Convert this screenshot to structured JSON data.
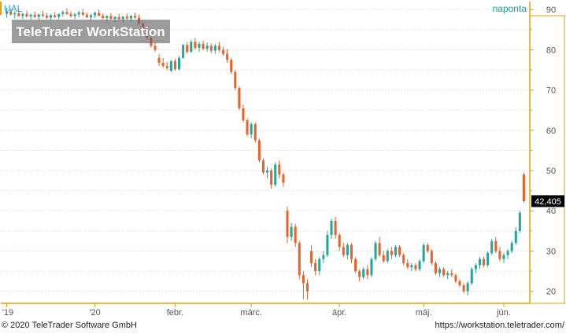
{
  "symbol": "UAL",
  "interval_label": "naponta",
  "watermark": "TeleTrader WorkStation",
  "last_price_label": "42,405",
  "footer": {
    "copyright": "© 2020 TeleTrader Software GmbH",
    "url": "https://workstation.teletrader.com/"
  },
  "colors": {
    "up": "#26a69a",
    "down": "#e8622a",
    "frame": "#e8a000",
    "grid": "#d8d8d8",
    "price_tag_bg": "#000000",
    "price_tag_text": "#ffffff",
    "symbol_text": "#2e9fd8",
    "interval_text": "#1aa39a"
  },
  "chart_data": {
    "type": "candlestick",
    "ylim": [
      17,
      92
    ],
    "y_ticks": [
      20,
      30,
      40,
      50,
      60,
      70,
      80,
      90
    ],
    "x_ticks": [
      {
        "label": "'19",
        "pos": 0
      },
      {
        "label": "'20",
        "pos": 22
      },
      {
        "label": "febr.",
        "pos": 42
      },
      {
        "label": "márc.",
        "pos": 61
      },
      {
        "label": "ápr.",
        "pos": 83
      },
      {
        "label": "máj.",
        "pos": 104
      },
      {
        "label": "jún.",
        "pos": 124
      }
    ],
    "candles": [
      [
        89.0,
        90.5,
        88.0,
        89.5
      ],
      [
        89.5,
        90.2,
        88.5,
        88.8
      ],
      [
        88.8,
        89.6,
        87.8,
        89.1
      ],
      [
        89.1,
        90.0,
        88.3,
        88.4
      ],
      [
        88.4,
        89.3,
        87.6,
        88.9
      ],
      [
        88.9,
        89.8,
        88.0,
        88.3
      ],
      [
        88.3,
        89.0,
        87.5,
        88.7
      ],
      [
        88.7,
        89.5,
        87.9,
        88.2
      ],
      [
        88.2,
        89.0,
        87.4,
        88.8
      ],
      [
        88.8,
        89.7,
        88.1,
        88.5
      ],
      [
        88.5,
        89.2,
        87.7,
        88.0
      ],
      [
        88.0,
        88.9,
        87.3,
        88.6
      ],
      [
        88.6,
        89.4,
        87.9,
        88.2
      ],
      [
        88.2,
        89.0,
        87.6,
        88.9
      ],
      [
        88.9,
        89.8,
        88.3,
        89.4
      ],
      [
        89.4,
        90.3,
        88.7,
        88.9
      ],
      [
        88.9,
        89.6,
        88.0,
        88.4
      ],
      [
        88.4,
        89.2,
        87.6,
        88.8
      ],
      [
        88.8,
        89.7,
        88.1,
        89.3
      ],
      [
        89.3,
        90.2,
        88.5,
        88.7
      ],
      [
        88.7,
        89.3,
        87.9,
        88.1
      ],
      [
        88.1,
        88.9,
        87.2,
        88.6
      ],
      [
        88.6,
        89.5,
        87.9,
        89.2
      ],
      [
        89.2,
        90.0,
        88.3,
        88.5
      ],
      [
        88.5,
        89.1,
        87.6,
        87.9
      ],
      [
        87.9,
        88.6,
        87.0,
        88.4
      ],
      [
        88.4,
        89.1,
        87.5,
        87.7
      ],
      [
        87.7,
        88.4,
        86.9,
        88.2
      ],
      [
        88.2,
        89.0,
        87.4,
        87.6
      ],
      [
        87.6,
        88.3,
        86.8,
        88.3
      ],
      [
        88.3,
        89.0,
        87.5,
        87.8
      ],
      [
        87.8,
        88.6,
        87.0,
        88.5
      ],
      [
        88.5,
        89.3,
        87.7,
        88.0
      ],
      [
        88.0,
        88.8,
        86.2,
        86.5
      ],
      [
        86.5,
        87.2,
        84.0,
        84.5
      ],
      [
        84.5,
        85.6,
        82.5,
        83.0
      ],
      [
        83.0,
        83.6,
        80.5,
        81.0
      ],
      [
        81.0,
        81.8,
        79.5,
        80.0
      ],
      [
        78.0,
        79.0,
        76.0,
        76.8
      ],
      [
        76.8,
        78.0,
        75.5,
        76.0
      ],
      [
        76.0,
        77.0,
        75.0,
        75.5
      ],
      [
        74.8,
        77.5,
        74.5,
        77.2
      ],
      [
        77.2,
        77.8,
        74.8,
        75.2
      ],
      [
        75.2,
        78.5,
        74.9,
        78.0
      ],
      [
        78.0,
        81.5,
        77.8,
        81.2
      ],
      [
        81.2,
        82.0,
        79.0,
        79.5
      ],
      [
        79.5,
        82.5,
        79.2,
        82.0
      ],
      [
        82.0,
        83.0,
        80.0,
        80.5
      ],
      [
        80.5,
        82.0,
        79.5,
        81.5
      ],
      [
        81.5,
        82.3,
        79.8,
        80.3
      ],
      [
        80.3,
        81.8,
        79.5,
        81.0
      ],
      [
        81.0,
        81.6,
        79.2,
        79.8
      ],
      [
        79.8,
        81.5,
        79.0,
        81.0
      ],
      [
        81.0,
        82.0,
        79.5,
        80.0
      ],
      [
        80.0,
        80.8,
        78.5,
        79.0
      ],
      [
        79.0,
        80.2,
        76.8,
        77.5
      ],
      [
        77.5,
        78.0,
        74.0,
        74.5
      ],
      [
        74.5,
        75.0,
        70.0,
        70.5
      ],
      [
        70.5,
        71.0,
        65.0,
        65.5
      ],
      [
        65.5,
        66.5,
        62.0,
        62.5
      ],
      [
        62.5,
        63.0,
        58.5,
        59.0
      ],
      [
        59.0,
        62.0,
        58.0,
        61.5
      ],
      [
        61.5,
        62.0,
        57.0,
        57.5
      ],
      [
        57.5,
        58.0,
        52.0,
        52.5
      ],
      [
        52.5,
        53.0,
        49.0,
        49.5
      ],
      [
        49.5,
        51.0,
        48.0,
        50.0
      ],
      [
        50.0,
        50.5,
        45.5,
        46.5
      ],
      [
        46.5,
        52.0,
        46.0,
        51.5
      ],
      [
        51.5,
        52.5,
        48.0,
        49.0
      ],
      [
        49.0,
        49.5,
        46.0,
        47.0
      ],
      [
        40.0,
        41.0,
        32.0,
        33.5
      ],
      [
        33.5,
        37.0,
        32.5,
        36.0
      ],
      [
        36.0,
        36.8,
        31.0,
        32.0
      ],
      [
        32.0,
        32.5,
        23.0,
        24.0
      ],
      [
        24.0,
        25.0,
        18.0,
        22.0
      ],
      [
        22.0,
        23.0,
        18.0,
        20.0
      ],
      [
        30.0,
        31.5,
        26.0,
        27.0
      ],
      [
        27.0,
        28.0,
        24.0,
        25.0
      ],
      [
        25.0,
        28.5,
        24.0,
        28.0
      ],
      [
        28.0,
        30.0,
        27.0,
        29.0
      ],
      [
        29.0,
        35.0,
        28.5,
        34.0
      ],
      [
        34.0,
        38.0,
        33.0,
        37.5
      ],
      [
        37.5,
        38.5,
        33.0,
        34.0
      ],
      [
        34.0,
        34.5,
        30.0,
        31.0
      ],
      [
        31.0,
        32.0,
        28.5,
        29.0
      ],
      [
        29.0,
        32.0,
        28.0,
        31.5
      ],
      [
        31.5,
        32.0,
        27.0,
        28.0
      ],
      [
        28.0,
        28.5,
        24.5,
        25.0
      ],
      [
        25.0,
        25.5,
        22.5,
        23.5
      ],
      [
        23.5,
        26.0,
        23.0,
        25.5
      ],
      [
        25.5,
        26.5,
        23.0,
        24.0
      ],
      [
        24.0,
        28.5,
        23.5,
        28.0
      ],
      [
        28.0,
        32.5,
        27.5,
        32.0
      ],
      [
        32.0,
        33.5,
        28.5,
        29.0
      ],
      [
        29.0,
        30.0,
        27.0,
        27.5
      ],
      [
        27.5,
        30.5,
        27.0,
        30.0
      ],
      [
        30.0,
        31.0,
        28.0,
        29.0
      ],
      [
        29.0,
        31.5,
        28.5,
        31.0
      ],
      [
        31.0,
        31.5,
        28.5,
        29.0
      ],
      [
        29.0,
        29.5,
        26.5,
        27.0
      ],
      [
        27.0,
        28.0,
        25.5,
        26.0
      ],
      [
        26.0,
        27.0,
        25.0,
        26.5
      ],
      [
        26.5,
        27.0,
        25.0,
        25.5
      ],
      [
        25.5,
        28.0,
        25.0,
        27.5
      ],
      [
        27.5,
        32.0,
        27.0,
        31.5
      ],
      [
        31.5,
        32.0,
        29.5,
        30.0
      ],
      [
        30.0,
        30.5,
        26.5,
        27.0
      ],
      [
        27.0,
        27.5,
        24.0,
        24.5
      ],
      [
        24.5,
        26.0,
        23.5,
        25.5
      ],
      [
        25.5,
        26.0,
        23.5,
        24.0
      ],
      [
        24.0,
        25.0,
        23.0,
        24.5
      ],
      [
        24.5,
        25.5,
        23.5,
        24.0
      ],
      [
        24.0,
        24.5,
        22.0,
        22.5
      ],
      [
        22.5,
        23.0,
        21.0,
        21.5
      ],
      [
        21.5,
        22.0,
        19.5,
        20.0
      ],
      [
        20.0,
        22.5,
        19.0,
        22.0
      ],
      [
        22.0,
        26.0,
        21.5,
        25.5
      ],
      [
        25.5,
        27.0,
        24.5,
        26.5
      ],
      [
        26.5,
        28.5,
        25.5,
        28.0
      ],
      [
        28.0,
        28.5,
        26.0,
        26.5
      ],
      [
        26.5,
        30.0,
        26.0,
        29.5
      ],
      [
        29.5,
        33.0,
        29.0,
        32.5
      ],
      [
        32.5,
        33.5,
        29.5,
        30.0
      ],
      [
        30.0,
        31.0,
        27.5,
        28.0
      ],
      [
        28.0,
        29.5,
        27.0,
        29.0
      ],
      [
        29.0,
        30.5,
        28.0,
        30.0
      ],
      [
        30.0,
        32.5,
        29.5,
        32.0
      ],
      [
        32.0,
        36.0,
        31.5,
        35.0
      ],
      [
        35.0,
        40.0,
        34.5,
        39.5
      ],
      [
        49.0,
        49.5,
        42.0,
        42.405
      ]
    ]
  }
}
